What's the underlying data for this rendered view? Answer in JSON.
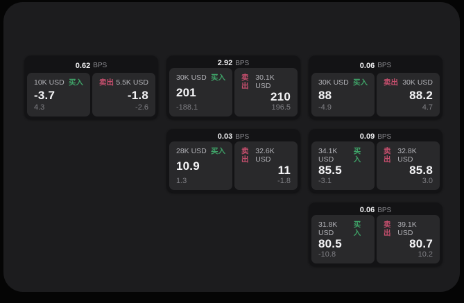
{
  "colors": {
    "page_bg": "#050505",
    "panel_bg": "#1c1c1e",
    "card_bg": "#131315",
    "tile_bg": "#29292b",
    "buy": "#3fa368",
    "sell": "#c74f6e"
  },
  "cards": [
    {
      "col": 1,
      "row": 1,
      "bps_value": "0.62",
      "bps_unit": "BPS",
      "buy": {
        "amount": "10K USD",
        "side": "买入",
        "price": "-3.7",
        "delta": "4.3"
      },
      "sell": {
        "side": "卖出",
        "amount": "5.5K USD",
        "price": "-1.8",
        "delta": "-2.6"
      }
    },
    {
      "col": 2,
      "row": 1,
      "bps_value": "2.92",
      "bps_unit": "BPS",
      "buy": {
        "amount": "30K USD",
        "side": "买入",
        "price": "201",
        "delta": "-188.1"
      },
      "sell": {
        "side": "卖出",
        "amount": "30.1K USD",
        "price": "210",
        "delta": "196.5"
      }
    },
    {
      "col": 3,
      "row": 1,
      "bps_value": "0.06",
      "bps_unit": "BPS",
      "buy": {
        "amount": "30K USD",
        "side": "买入",
        "price": "88",
        "delta": "-4.9"
      },
      "sell": {
        "side": "卖出",
        "amount": "30K USD",
        "price": "88.2",
        "delta": "4.7"
      }
    },
    {
      "col": 2,
      "row": 2,
      "bps_value": "0.03",
      "bps_unit": "BPS",
      "buy": {
        "amount": "28K USD",
        "side": "买入",
        "price": "10.9",
        "delta": "1.3"
      },
      "sell": {
        "side": "卖出",
        "amount": "32.6K USD",
        "price": "11",
        "delta": "-1.8"
      }
    },
    {
      "col": 3,
      "row": 2,
      "bps_value": "0.09",
      "bps_unit": "BPS",
      "buy": {
        "amount": "34.1K USD",
        "side": "买入",
        "price": "85.5",
        "delta": "-3.1"
      },
      "sell": {
        "side": "卖出",
        "amount": "32.8K USD",
        "price": "85.8",
        "delta": "3.0"
      }
    },
    {
      "col": 3,
      "row": 3,
      "bps_value": "0.06",
      "bps_unit": "BPS",
      "buy": {
        "amount": "31.8K USD",
        "side": "买入",
        "price": "80.5",
        "delta": "-10.8"
      },
      "sell": {
        "side": "卖出",
        "amount": "39.1K USD",
        "price": "80.7",
        "delta": "10.2"
      }
    }
  ]
}
